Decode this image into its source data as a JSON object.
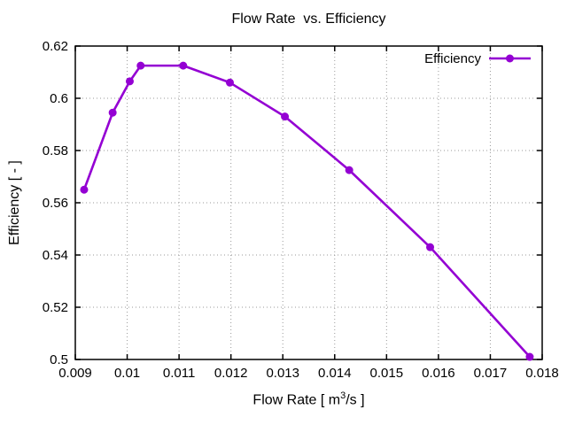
{
  "chart_data": {
    "type": "line",
    "title": "Flow Rate  vs. Efficiency",
    "xlabel": {
      "prefix": "Flow Rate [ m",
      "sup": "3",
      "suffix": "/s ]"
    },
    "ylabel": "Efficiency [ - ]",
    "xlim": [
      0.009,
      0.018
    ],
    "ylim": [
      0.5,
      0.62
    ],
    "grid": true,
    "xticks": {
      "values": [
        0.009,
        0.01,
        0.011,
        0.012,
        0.013,
        0.014,
        0.015,
        0.016,
        0.017,
        0.018
      ],
      "labels": [
        "0.009",
        "0.01",
        "0.011",
        "0.012",
        "0.013",
        "0.014",
        "0.015",
        "0.016",
        "0.017",
        "0.018"
      ]
    },
    "yticks": {
      "values": [
        0.5,
        0.52,
        0.54,
        0.56,
        0.58,
        0.6,
        0.62
      ],
      "labels": [
        "0.5",
        "0.52",
        "0.54",
        "0.56",
        "0.58",
        "0.6",
        "0.62"
      ]
    },
    "legend": {
      "position": "top-right",
      "label": "Efficiency"
    },
    "series": [
      {
        "name": "Efficiency",
        "color": "#9400d3",
        "marker": "circle",
        "points": [
          [
            0.00917,
            0.565
          ],
          [
            0.00972,
            0.5945
          ],
          [
            0.01005,
            0.6065
          ],
          [
            0.01026,
            0.6125
          ],
          [
            0.01108,
            0.6125
          ],
          [
            0.01198,
            0.606
          ],
          [
            0.01304,
            0.593
          ],
          [
            0.01428,
            0.5725
          ],
          [
            0.01584,
            0.543
          ],
          [
            0.01776,
            0.501
          ]
        ]
      }
    ]
  },
  "colors": {
    "background": "#ffffff",
    "axis": "#000000",
    "grid": "#9a9a9a",
    "text": "#000000",
    "line": "#9400d3"
  }
}
